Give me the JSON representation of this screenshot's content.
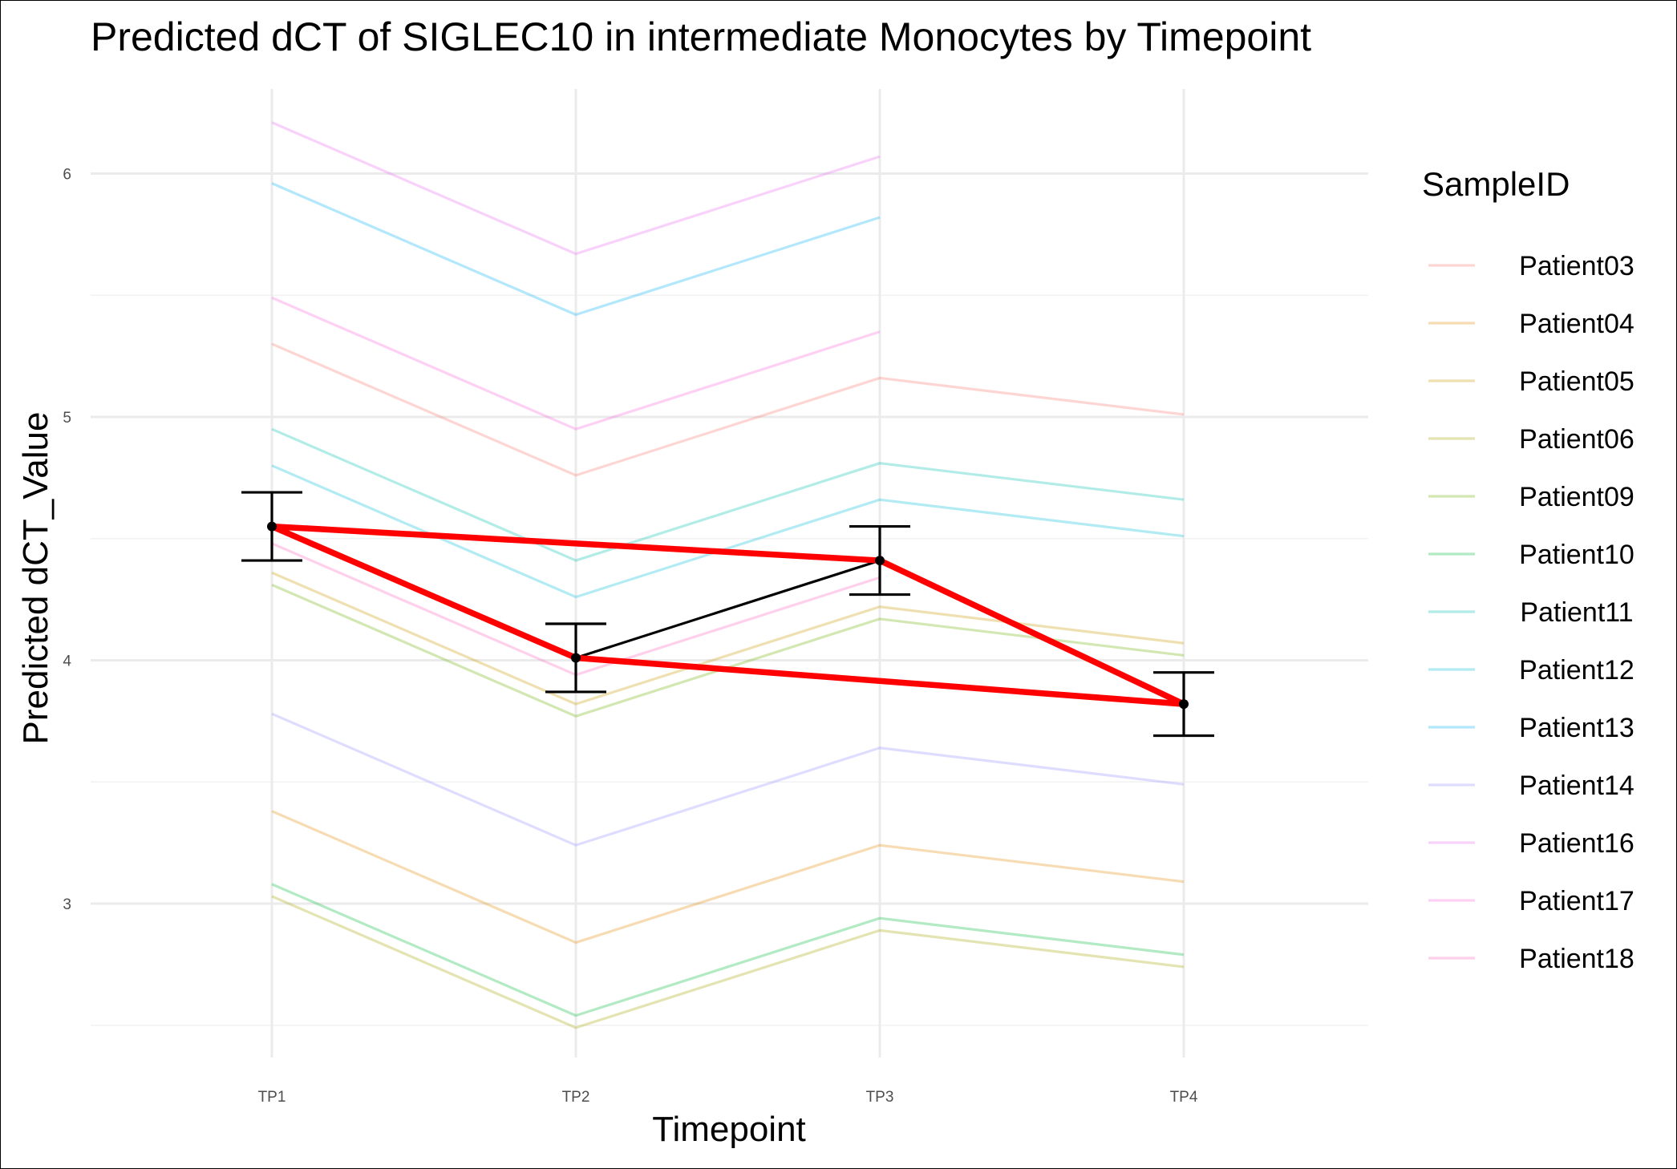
{
  "chart_data": {
    "type": "line",
    "title": "Predicted dCT of  SIGLEC10 in  intermediate  Monocytes by Timepoint",
    "xlabel": "Timepoint",
    "ylabel": "Predicted dCT_Value",
    "categories": [
      "TP1",
      "TP2",
      "TP3",
      "TP4"
    ],
    "ylim": [
      2.45,
      6.4
    ],
    "yticks": [
      3,
      4,
      5,
      6
    ],
    "grid": true,
    "legend": {
      "title": "SampleID",
      "position": "right"
    },
    "series": [
      {
        "name": "Patient03",
        "color": "#F8766D",
        "values": [
          5.3,
          4.76,
          5.16,
          5.01
        ]
      },
      {
        "name": "Patient04",
        "color": "#E58700",
        "values": [
          3.38,
          2.84,
          3.24,
          3.09
        ]
      },
      {
        "name": "Patient05",
        "color": "#C99800",
        "values": [
          4.36,
          3.82,
          4.22,
          4.07
        ]
      },
      {
        "name": "Patient06",
        "color": "#A3A500",
        "values": [
          3.03,
          2.49,
          2.89,
          2.74
        ]
      },
      {
        "name": "Patient09",
        "color": "#6BB100",
        "values": [
          4.31,
          3.77,
          4.17,
          4.02
        ]
      },
      {
        "name": "Patient10",
        "color": "#00BA38",
        "values": [
          3.08,
          2.54,
          2.94,
          2.79
        ]
      },
      {
        "name": "Patient11",
        "color": "#00C0AF",
        "values": [
          4.95,
          4.41,
          4.81,
          4.66
        ]
      },
      {
        "name": "Patient12",
        "color": "#00BCD8",
        "values": [
          4.8,
          4.26,
          4.66,
          4.51
        ]
      },
      {
        "name": "Patient13",
        "color": "#00B0F6",
        "values": [
          5.96,
          5.42,
          5.82,
          null
        ]
      },
      {
        "name": "Patient14",
        "color": "#9590FF",
        "values": [
          3.78,
          3.24,
          3.64,
          3.49
        ]
      },
      {
        "name": "Patient16",
        "color": "#E76BF3",
        "values": [
          6.21,
          5.67,
          6.07,
          null
        ]
      },
      {
        "name": "Patient17",
        "color": "#FA62DB",
        "values": [
          5.49,
          4.95,
          5.35,
          null
        ]
      },
      {
        "name": "Patient18",
        "color": "#FF62BC",
        "values": [
          4.48,
          3.94,
          4.34,
          null
        ]
      }
    ],
    "mean": {
      "color": "#000000",
      "values": [
        4.55,
        4.01,
        4.41,
        3.82
      ],
      "lower": [
        4.41,
        3.87,
        4.27,
        3.69
      ],
      "upper": [
        4.69,
        4.15,
        4.55,
        3.95
      ]
    },
    "highlight": {
      "color": "#FF0000",
      "path": [
        {
          "x": "TP1",
          "y": 4.55
        },
        {
          "x": "TP2",
          "y": 4.01
        },
        {
          "x": "TP1",
          "y": 4.55
        },
        {
          "x": "TP3",
          "y": 4.41
        },
        {
          "x": "TP4",
          "y": 3.82
        },
        {
          "x": "TP2",
          "y": 4.01
        }
      ]
    },
    "highlight_path_note": ""
  }
}
